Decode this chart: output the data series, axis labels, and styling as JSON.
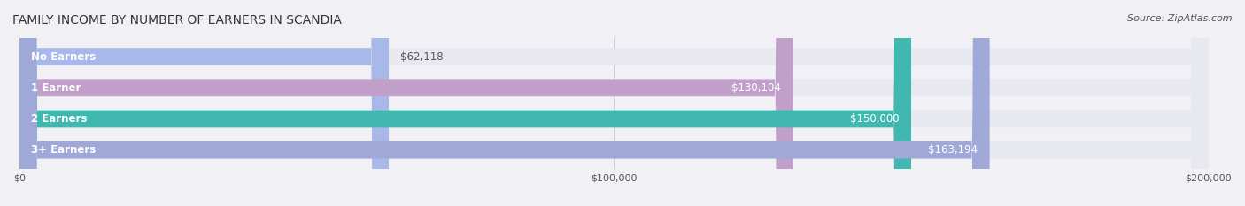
{
  "title": "FAMILY INCOME BY NUMBER OF EARNERS IN SCANDIA",
  "source": "Source: ZipAtlas.com",
  "categories": [
    "No Earners",
    "1 Earner",
    "2 Earners",
    "3+ Earners"
  ],
  "values": [
    62118,
    130104,
    150000,
    163194
  ],
  "labels": [
    "$62,118",
    "$130,104",
    "$150,000",
    "$163,194"
  ],
  "bar_colors": [
    "#a8b8e8",
    "#c0a0c8",
    "#40b8b0",
    "#a0a8d8"
  ],
  "bar_bg_color": "#e8e8f0",
  "xmax": 200000,
  "xticks": [
    0,
    100000,
    200000
  ],
  "xtick_labels": [
    "$0",
    "$100,000",
    "$200,000"
  ],
  "title_fontsize": 10,
  "source_fontsize": 8,
  "background_color": "#f0f0f5",
  "label_color_inside": "#ffffff",
  "label_color_outside": "#555555",
  "bar_height": 0.55,
  "bar_label_fontsize": 8.5,
  "category_fontsize": 8.5
}
